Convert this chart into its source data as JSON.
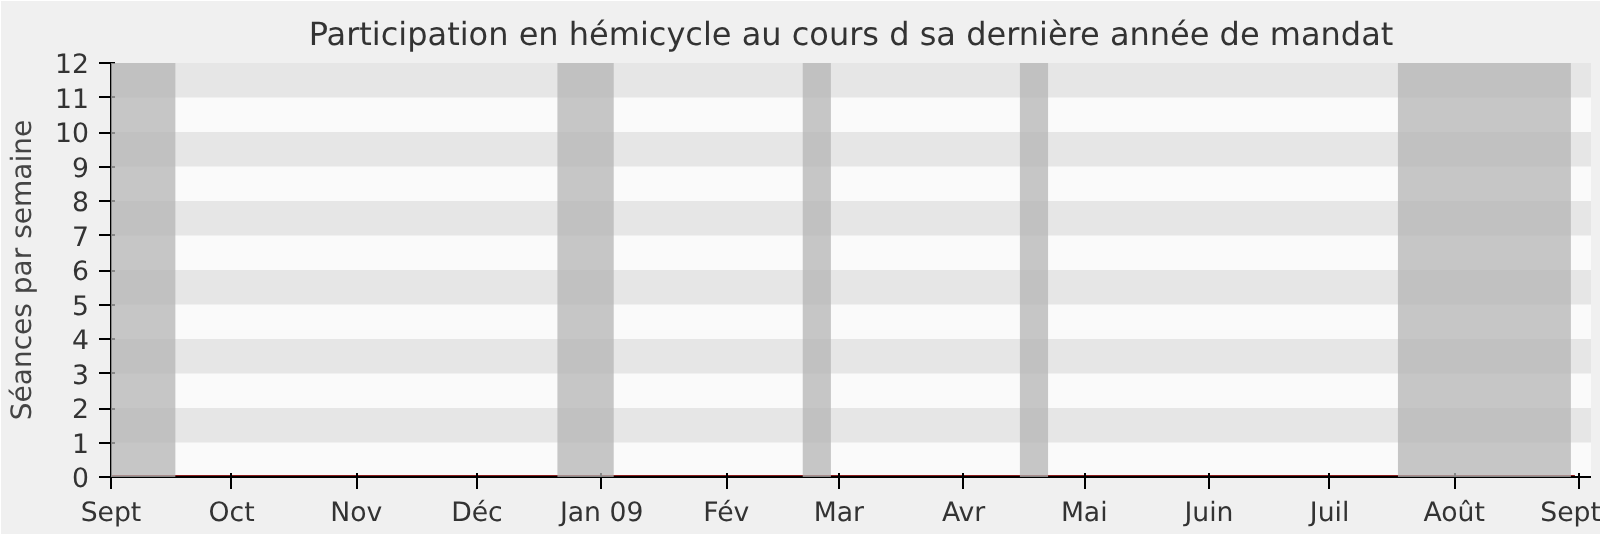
{
  "chart_data": {
    "type": "line",
    "title": "Participation en hémicycle au cours d sa dernière année de mandat",
    "ylabel": "Séances par semaine",
    "x": [
      "2008-09-01",
      "2008-09-08",
      "2008-09-15",
      "2008-09-22",
      "2008-09-29",
      "2008-10-06",
      "2008-10-13",
      "2008-10-20",
      "2008-10-27",
      "2008-11-03",
      "2008-11-10",
      "2008-11-17",
      "2008-11-24",
      "2008-12-01",
      "2008-12-08",
      "2008-12-15",
      "2008-12-22",
      "2008-12-29",
      "2009-01-05",
      "2009-01-12",
      "2009-01-19",
      "2009-01-26",
      "2009-02-02",
      "2009-02-09",
      "2009-02-16",
      "2009-02-23",
      "2009-03-02",
      "2009-03-09",
      "2009-03-16",
      "2009-03-23",
      "2009-03-30",
      "2009-04-06",
      "2009-04-13",
      "2009-04-20",
      "2009-04-27",
      "2009-05-04",
      "2009-05-11",
      "2009-05-18",
      "2009-05-25",
      "2009-06-01",
      "2009-06-08",
      "2009-06-15",
      "2009-06-22",
      "2009-06-29",
      "2009-07-06",
      "2009-07-13",
      "2009-07-20",
      "2009-07-27",
      "2009-08-03",
      "2009-08-10",
      "2009-08-17",
      "2009-08-24",
      "2009-08-31"
    ],
    "series": [
      {
        "color": "#8b1a1a",
        "values": [
          0,
          0,
          0,
          0,
          0,
          0,
          0,
          0,
          0,
          0,
          0,
          0,
          0,
          0,
          0,
          0,
          0,
          0,
          0,
          0,
          0,
          0,
          0,
          0,
          0,
          0,
          0,
          0,
          0,
          0,
          0,
          0,
          0,
          0,
          0,
          0,
          0,
          0,
          0,
          0,
          0,
          0,
          0,
          0,
          0,
          0,
          0,
          0,
          0,
          0,
          0,
          0,
          0
        ]
      }
    ],
    "xlim": [
      "2008-09-01",
      "2009-09-04"
    ],
    "xticks": [
      {
        "value": "2008-09-01",
        "label": "Sept"
      },
      {
        "value": "2008-10-01",
        "label": "Oct"
      },
      {
        "value": "2008-11-01",
        "label": "Nov"
      },
      {
        "value": "2008-12-01",
        "label": "Déc"
      },
      {
        "value": "2009-01-01",
        "label": "Jan 09"
      },
      {
        "value": "2009-02-01",
        "label": "Fév"
      },
      {
        "value": "2009-03-01",
        "label": "Mar"
      },
      {
        "value": "2009-04-01",
        "label": "Avr"
      },
      {
        "value": "2009-05-01",
        "label": "Mai"
      },
      {
        "value": "2009-06-01",
        "label": "Juin"
      },
      {
        "value": "2009-07-01",
        "label": "Juil"
      },
      {
        "value": "2009-08-01",
        "label": "Août"
      },
      {
        "value": "2009-09-01",
        "label": "Sept"
      }
    ],
    "ylim": [
      0,
      12
    ],
    "yticks": [
      0,
      1,
      2,
      3,
      4,
      5,
      6,
      7,
      8,
      9,
      10,
      11,
      12
    ],
    "bands": [
      {
        "axis": "x",
        "from": "2008-09-01",
        "to": "2008-09-17",
        "color": "#b4b4b4"
      },
      {
        "axis": "x",
        "from": "2008-12-21",
        "to": "2009-01-04",
        "color": "#b4b4b4"
      },
      {
        "axis": "x",
        "from": "2009-02-20",
        "to": "2009-02-27",
        "color": "#b4b4b4"
      },
      {
        "axis": "x",
        "from": "2009-04-15",
        "to": "2009-04-22",
        "color": "#b4b4b4"
      },
      {
        "axis": "x",
        "from": "2009-07-18",
        "to": "2009-08-30",
        "color": "#b4b4b4"
      }
    ]
  }
}
